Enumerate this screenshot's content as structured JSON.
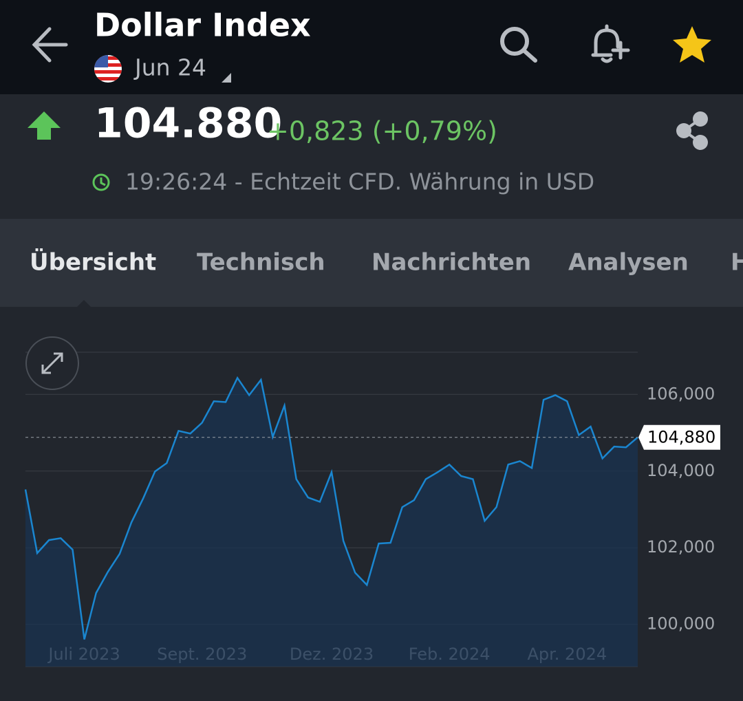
{
  "header": {
    "title": "Dollar Index",
    "subtitle": "Jun 24"
  },
  "quote": {
    "price": "104.880",
    "change": "+0,823 (+0,79%)",
    "status": "19:26:24 - Echtzeit CFD. Währung in USD"
  },
  "tabs": [
    "Übersicht",
    "Technisch",
    "Nachrichten",
    "Analysen",
    "H"
  ],
  "chart_data": {
    "type": "area",
    "color": "#1a86d0",
    "categories": [
      null,
      null,
      null,
      null,
      null,
      "Juli 2023",
      null,
      null,
      null,
      null,
      null,
      null,
      null,
      null,
      null,
      "Sept. 2023",
      null,
      null,
      null,
      null,
      null,
      null,
      null,
      null,
      null,
      null,
      "Dez. 2023",
      null,
      null,
      null,
      null,
      null,
      null,
      null,
      null,
      null,
      "Feb. 2024",
      null,
      null,
      null,
      null,
      null,
      null,
      null,
      null,
      null,
      "Apr. 2024",
      null,
      null,
      null,
      null,
      null,
      null
    ],
    "values": [
      103.52,
      101.86,
      102.2,
      102.25,
      101.95,
      99.61,
      100.82,
      101.37,
      101.84,
      102.66,
      103.29,
      103.99,
      104.21,
      105.05,
      104.98,
      105.26,
      105.82,
      105.8,
      106.43,
      105.98,
      106.38,
      104.89,
      105.71,
      103.79,
      103.31,
      103.2,
      103.97,
      102.18,
      101.35,
      101.03,
      102.11,
      102.13,
      103.06,
      103.24,
      103.79,
      103.97,
      104.17,
      103.87,
      103.79,
      102.7,
      103.06,
      104.17,
      104.26,
      104.08,
      105.86,
      105.98,
      105.82,
      104.94,
      105.16,
      104.33,
      104.64,
      104.62,
      104.88
    ],
    "ylim": [
      98.9,
      107.1
    ],
    "yticks": [
      {
        "value": 100,
        "label": "100,000"
      },
      {
        "value": 102,
        "label": "102,000"
      },
      {
        "value": 104,
        "label": "104,000"
      },
      {
        "value": 106,
        "label": "106,000"
      }
    ],
    "last_value": {
      "value": 104.88,
      "label": "104,880"
    },
    "grid": true
  }
}
